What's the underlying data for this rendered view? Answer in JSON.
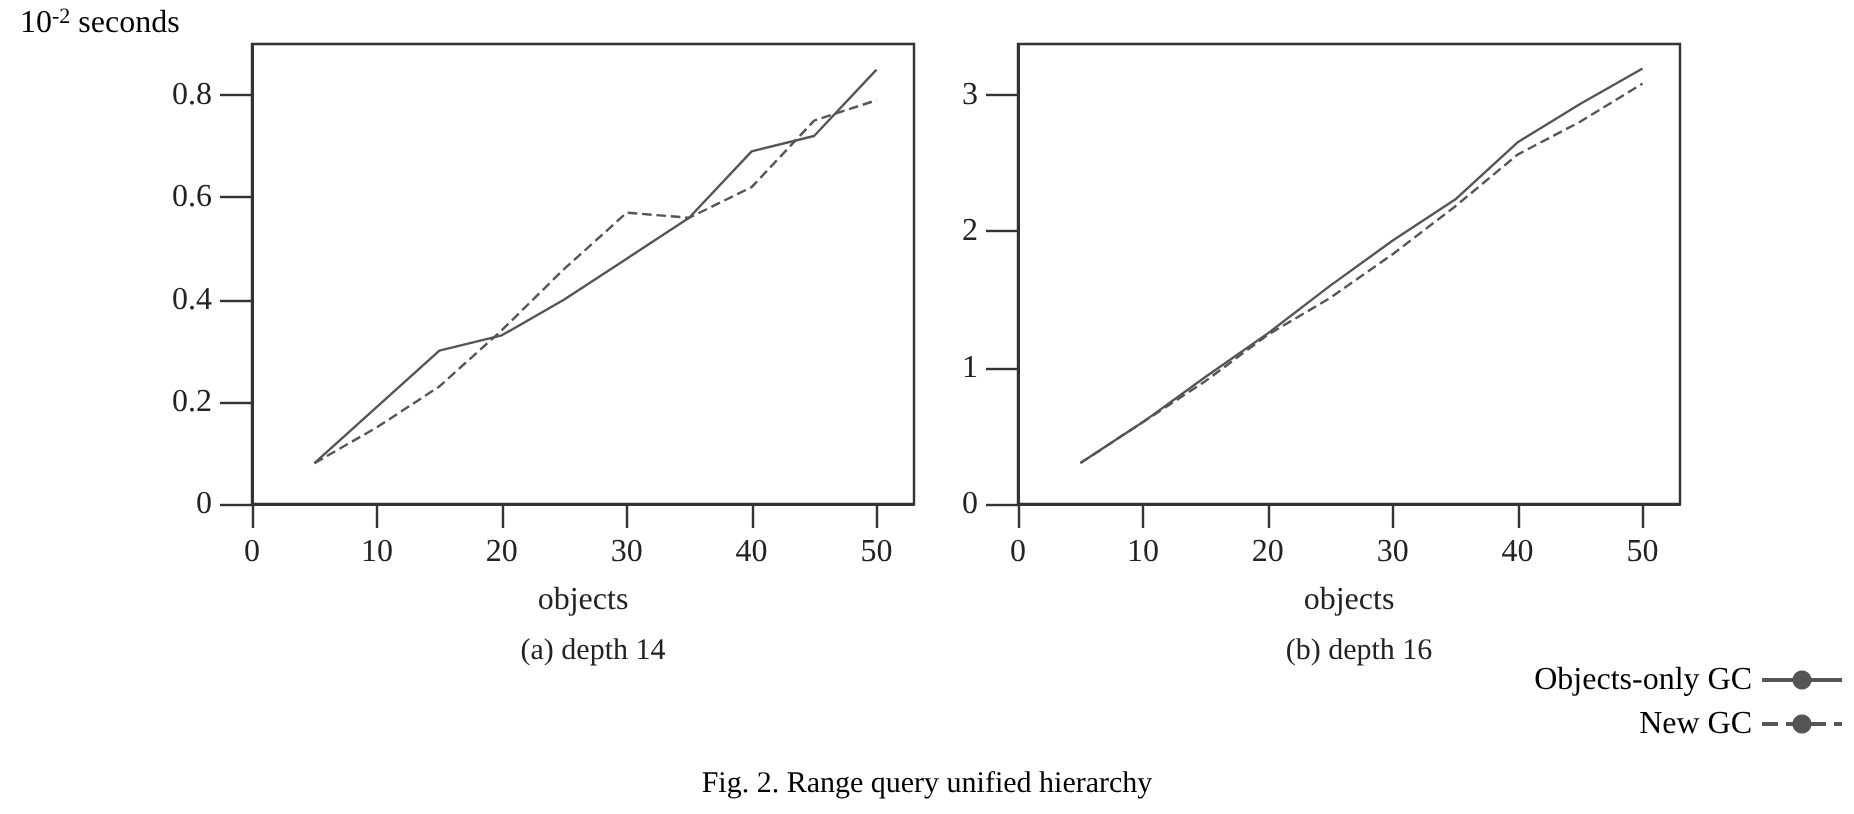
{
  "chart_data": [
    {
      "type": "line",
      "title": "(a) depth 14",
      "xlabel": "objects",
      "ylabel": "10$^{-2}$ seconds",
      "x": [
        5,
        10,
        15,
        20,
        25,
        30,
        35,
        40,
        45,
        50
      ],
      "series": [
        {
          "color": "#555555",
          "line_style": "solid",
          "values": [
            0.08,
            0.19,
            0.3,
            0.33,
            0.4,
            0.48,
            0.56,
            0.69,
            0.72,
            0.85
          ]
        },
        {
          "color": "#555555",
          "line_style": "dashed",
          "values": [
            0.08,
            0.15,
            0.23,
            0.34,
            0.46,
            0.57,
            0.56,
            0.62,
            0.75,
            0.79
          ]
        }
      ],
      "xlim": [
        0,
        53
      ],
      "xticks": [
        0,
        10,
        20,
        30,
        40,
        50
      ],
      "ylim": [
        0,
        0.9
      ],
      "yticks": [
        0,
        0.2,
        0.4,
        0.6,
        0.8
      ],
      "grid": false,
      "marker": "none"
    },
    {
      "type": "line",
      "title": "(b) depth 16",
      "xlabel": "objects",
      "x": [
        5,
        10,
        15,
        20,
        25,
        30,
        35,
        40,
        45,
        50
      ],
      "series": [
        {
          "name": "Objects-only GC",
          "color": "#555555",
          "line_style": "solid",
          "values": [
            0.3,
            0.6,
            0.93,
            1.25,
            1.6,
            1.93,
            2.23,
            2.65,
            2.93,
            3.19
          ]
        },
        {
          "name": "New GC",
          "color": "#555555",
          "line_style": "dashed",
          "values": [
            0.3,
            0.6,
            0.9,
            1.24,
            1.51,
            1.83,
            2.18,
            2.56,
            2.8,
            3.08
          ]
        }
      ],
      "xlim": [
        0,
        53
      ],
      "xticks": [
        0,
        10,
        20,
        30,
        40,
        50
      ],
      "ylim": [
        0,
        3.37
      ],
      "yticks": [
        0,
        1,
        2,
        3
      ],
      "grid": false,
      "legend": "bottom right",
      "marker": "none",
      "annotations": [
        "Fig. 2. Range query unified hierarchy"
      ]
    }
  ]
}
